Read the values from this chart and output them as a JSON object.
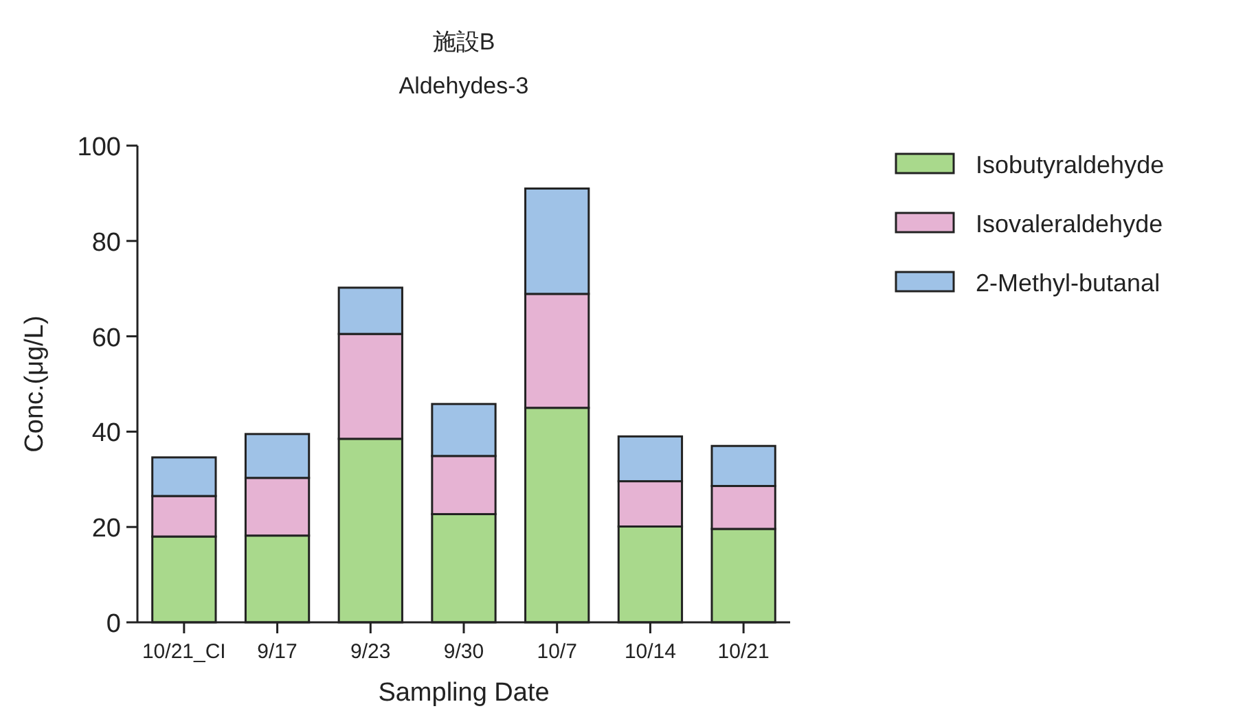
{
  "chart_data": {
    "type": "bar",
    "title": "施設B",
    "subtitle": "Aldehydes-3",
    "xlabel": "Sampling Date",
    "ylabel": "Conc.(μg/L)",
    "categories": [
      "10/21_CI",
      "9/17",
      "9/23",
      "9/30",
      "10/7",
      "10/14",
      "10/21"
    ],
    "stacked": true,
    "ylim": [
      0,
      100
    ],
    "yticks": [
      0,
      20,
      40,
      60,
      80,
      100
    ],
    "legend": "right",
    "series": [
      {
        "name": "Isobutyraldehyde",
        "color": "#a9d98c",
        "values": [
          18.0,
          18.2,
          38.5,
          22.7,
          45.0,
          20.1,
          19.6
        ]
      },
      {
        "name": "Isovaleraldehyde",
        "color": "#e6b3d3",
        "values": [
          8.5,
          12.1,
          22.0,
          12.2,
          23.9,
          9.5,
          9.0
        ]
      },
      {
        "name": "2-Methyl-butanal",
        "color": "#9fc2e7",
        "values": [
          8.1,
          9.2,
          9.7,
          10.9,
          22.1,
          9.4,
          8.4
        ]
      }
    ]
  }
}
